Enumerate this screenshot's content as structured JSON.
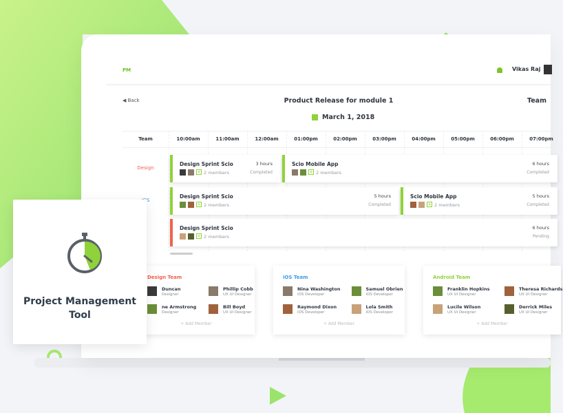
{
  "header": {
    "logo": "PM",
    "user": "Vikas Raj"
  },
  "toolbar": {
    "back": "Back",
    "title": "Product Release for module 1",
    "team": "Team",
    "date": "March 1, 2018"
  },
  "schedule": {
    "team_header": "Team",
    "times": [
      "10:00am",
      "11:00am",
      "12:00am",
      "01:00pm",
      "02:00pm",
      "03:00pm",
      "04:00pm",
      "05:00pm",
      "06:00pm",
      "07:00pm"
    ],
    "rows": [
      {
        "team": "Design",
        "tasks": [
          {
            "name": "Design Sprint Scio",
            "members": "2 members",
            "hours": "3 hours",
            "status": "Completed"
          },
          {
            "name": "Scio Mobile App",
            "members": "2 members",
            "hours": "6 hours",
            "status": "Completed"
          }
        ]
      },
      {
        "team": "iOS",
        "tasks": [
          {
            "name": "Design Sprint Scio",
            "members": "2 members",
            "hours": "5 hours",
            "status": "Completed"
          },
          {
            "name": "Scio Mobile App",
            "members": "2 members",
            "hours": "5 hours",
            "status": "Completed"
          }
        ]
      },
      {
        "tasks": [
          {
            "name": "Design Sprint Scio",
            "members": "2 members",
            "hours": "6 hours",
            "status": "Pending"
          }
        ]
      }
    ]
  },
  "teams": [
    {
      "name": "Design Team",
      "members": [
        {
          "name": "Duncan",
          "role": "Designer"
        },
        {
          "name": "Phillip Cobb",
          "role": "UX UI Designer"
        },
        {
          "name": "ne Armstrong",
          "role": "Designer"
        },
        {
          "name": "Bill Boyd",
          "role": "UX UI Designer"
        }
      ],
      "add": "+ Add Member"
    },
    {
      "name": "iOS Team",
      "members": [
        {
          "name": "Nina Washington",
          "role": "iOS Developer"
        },
        {
          "name": "Samuel Obrien",
          "role": "iOS Developer"
        },
        {
          "name": "Raymond Dixon",
          "role": "iOS Developer"
        },
        {
          "name": "Lola Smith",
          "role": "iOS Developer"
        }
      ],
      "add": "+ Add Member"
    },
    {
      "name": "Android Team",
      "members": [
        {
          "name": "Franklin Hopkins",
          "role": "UX UI Designer"
        },
        {
          "name": "Theresa Richards",
          "role": "UX UI Designer"
        },
        {
          "name": "Lucile Wilson",
          "role": "UX UI Designer"
        },
        {
          "name": "Derrick Miles",
          "role": "UX UI Designer"
        }
      ],
      "add": "+ Add Member"
    }
  ],
  "promo": {
    "title": "Project Management Tool"
  }
}
